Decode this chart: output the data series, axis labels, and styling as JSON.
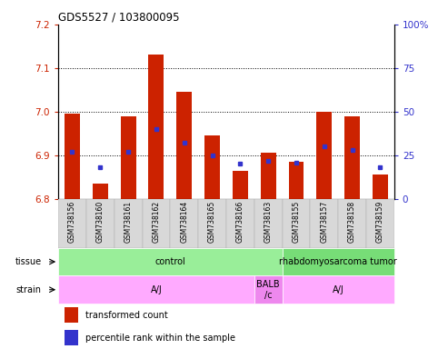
{
  "title": "GDS5527 / 103800095",
  "samples": [
    "GSM738156",
    "GSM738160",
    "GSM738161",
    "GSM738162",
    "GSM738164",
    "GSM738165",
    "GSM738166",
    "GSM738163",
    "GSM738155",
    "GSM738157",
    "GSM738158",
    "GSM738159"
  ],
  "transformed_count": [
    6.995,
    6.835,
    6.99,
    7.13,
    7.045,
    6.945,
    6.865,
    6.905,
    6.885,
    7.0,
    6.99,
    6.855
  ],
  "percentile_rank": [
    27,
    18,
    27,
    40,
    32,
    25,
    20,
    22,
    21,
    30,
    28,
    18
  ],
  "bar_base": 6.8,
  "ylim_left": [
    6.8,
    7.2
  ],
  "ylim_right": [
    0,
    100
  ],
  "yticks_left": [
    6.8,
    6.9,
    7.0,
    7.1,
    7.2
  ],
  "yticks_right": [
    0,
    25,
    50,
    75,
    100
  ],
  "red_color": "#cc2200",
  "blue_color": "#3333cc",
  "bar_width": 0.55,
  "tissue_data": [
    {
      "text": "control",
      "start": 0,
      "end": 7,
      "color": "#99ee99"
    },
    {
      "text": "rhabdomyosarcoma tumor",
      "start": 8,
      "end": 11,
      "color": "#77dd77"
    }
  ],
  "strain_data": [
    {
      "text": "A/J",
      "start": 0,
      "end": 6,
      "color": "#ffaaff"
    },
    {
      "text": "BALB\n/c",
      "start": 7,
      "end": 7,
      "color": "#ee88ee"
    },
    {
      "text": "A/J",
      "start": 8,
      "end": 11,
      "color": "#ffaaff"
    }
  ],
  "tissue_row_label": "tissue",
  "strain_row_label": "strain",
  "legend_items": [
    {
      "label": "transformed count",
      "color": "#cc2200"
    },
    {
      "label": "percentile rank within the sample",
      "color": "#3333cc"
    }
  ],
  "axis_color_left": "#cc2200",
  "axis_color_right": "#3333cc",
  "bg_color": "#ffffff",
  "dotted_lines": [
    6.9,
    7.0,
    7.1
  ]
}
